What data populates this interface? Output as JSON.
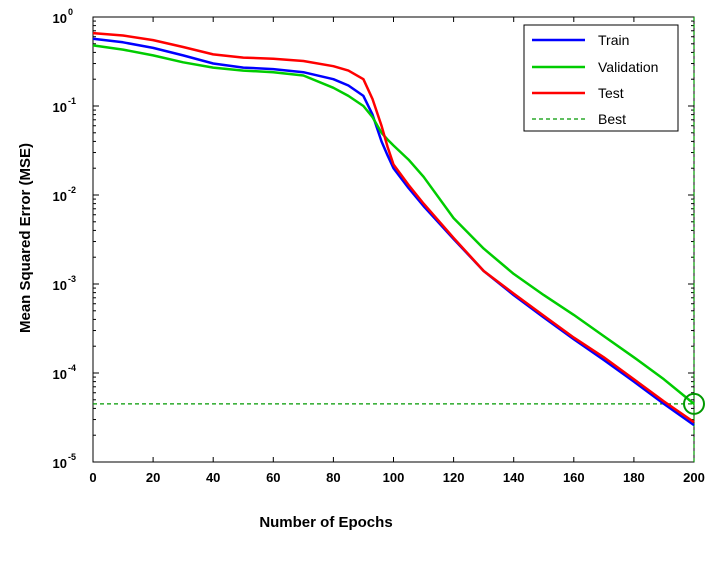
{
  "chart_data": {
    "type": "line",
    "title": "",
    "xlabel": "Number of Epochs",
    "ylabel": "Mean Squared Error (MSE)",
    "xlim": [
      0,
      200
    ],
    "ylim": [
      1e-05,
      1
    ],
    "yscale": "log",
    "grid": false,
    "legend_position": "top-right",
    "x_ticks": [
      "0",
      "20",
      "40",
      "60",
      "80",
      "100",
      "120",
      "140",
      "160",
      "180",
      "200"
    ],
    "y_ticks": [
      {
        "base": "10",
        "exp": "0",
        "value": 1
      },
      {
        "base": "10",
        "exp": "-1",
        "value": 0.1
      },
      {
        "base": "10",
        "exp": "-2",
        "value": 0.01
      },
      {
        "base": "10",
        "exp": "-3",
        "value": 0.001
      },
      {
        "base": "10",
        "exp": "-4",
        "value": 0.0001
      },
      {
        "base": "10",
        "exp": "-5",
        "value": 1e-05
      }
    ],
    "series": [
      {
        "name": "Train",
        "color": "#0000ff",
        "style": "solid",
        "x": [
          0,
          10,
          20,
          30,
          40,
          50,
          60,
          70,
          80,
          85,
          90,
          93,
          96,
          98,
          100,
          105,
          110,
          120,
          130,
          140,
          150,
          160,
          170,
          180,
          190,
          200
        ],
        "y": [
          0.57,
          0.52,
          0.45,
          0.37,
          0.3,
          0.27,
          0.26,
          0.24,
          0.2,
          0.17,
          0.13,
          0.08,
          0.04,
          0.028,
          0.02,
          0.012,
          0.0075,
          0.0032,
          0.0014,
          0.00075,
          0.00042,
          0.00024,
          0.00014,
          8e-05,
          4.5e-05,
          2.6e-05
        ]
      },
      {
        "name": "Validation",
        "color": "#00cc00",
        "style": "solid",
        "x": [
          0,
          10,
          20,
          30,
          40,
          50,
          60,
          70,
          80,
          85,
          90,
          93,
          96,
          98,
          100,
          105,
          110,
          120,
          130,
          140,
          150,
          160,
          170,
          180,
          190,
          200
        ],
        "y": [
          0.48,
          0.43,
          0.37,
          0.31,
          0.27,
          0.25,
          0.24,
          0.22,
          0.16,
          0.13,
          0.1,
          0.075,
          0.05,
          0.042,
          0.036,
          0.025,
          0.016,
          0.0055,
          0.0025,
          0.0013,
          0.00075,
          0.00045,
          0.00026,
          0.00015,
          8.5e-05,
          4.5e-05
        ]
      },
      {
        "name": "Test",
        "color": "#ff0000",
        "style": "solid",
        "x": [
          0,
          10,
          20,
          30,
          40,
          50,
          60,
          70,
          80,
          85,
          90,
          93,
          96,
          98,
          100,
          105,
          110,
          120,
          130,
          140,
          150,
          160,
          170,
          180,
          190,
          200
        ],
        "y": [
          0.66,
          0.62,
          0.55,
          0.46,
          0.38,
          0.35,
          0.34,
          0.32,
          0.28,
          0.25,
          0.2,
          0.12,
          0.06,
          0.035,
          0.022,
          0.013,
          0.008,
          0.0033,
          0.0014,
          0.00078,
          0.00044,
          0.00025,
          0.00015,
          8.5e-05,
          4.8e-05,
          2.8e-05
        ]
      },
      {
        "name": "Best",
        "color": "#009900",
        "style": "dashed",
        "best_epoch": 200,
        "best_value": 4.5e-05
      }
    ]
  }
}
